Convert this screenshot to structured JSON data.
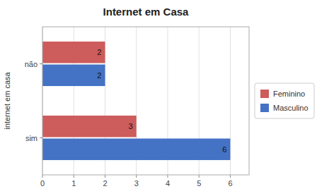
{
  "chart_data": {
    "type": "bar",
    "orientation": "horizontal",
    "title": "Internet em Casa",
    "ylabel": "internet em casa",
    "categories": [
      "sim",
      "não"
    ],
    "series": [
      {
        "name": "Feminino",
        "color": "#cd5c5c",
        "values": [
          3,
          2
        ]
      },
      {
        "name": "Masculino",
        "color": "#4472c4",
        "values": [
          6,
          2
        ]
      }
    ],
    "xlim": [
      0,
      6.6
    ],
    "xticks": [
      0,
      1,
      2,
      3,
      4,
      5,
      6
    ],
    "grid": true,
    "data_labels": true,
    "legend": "right"
  }
}
